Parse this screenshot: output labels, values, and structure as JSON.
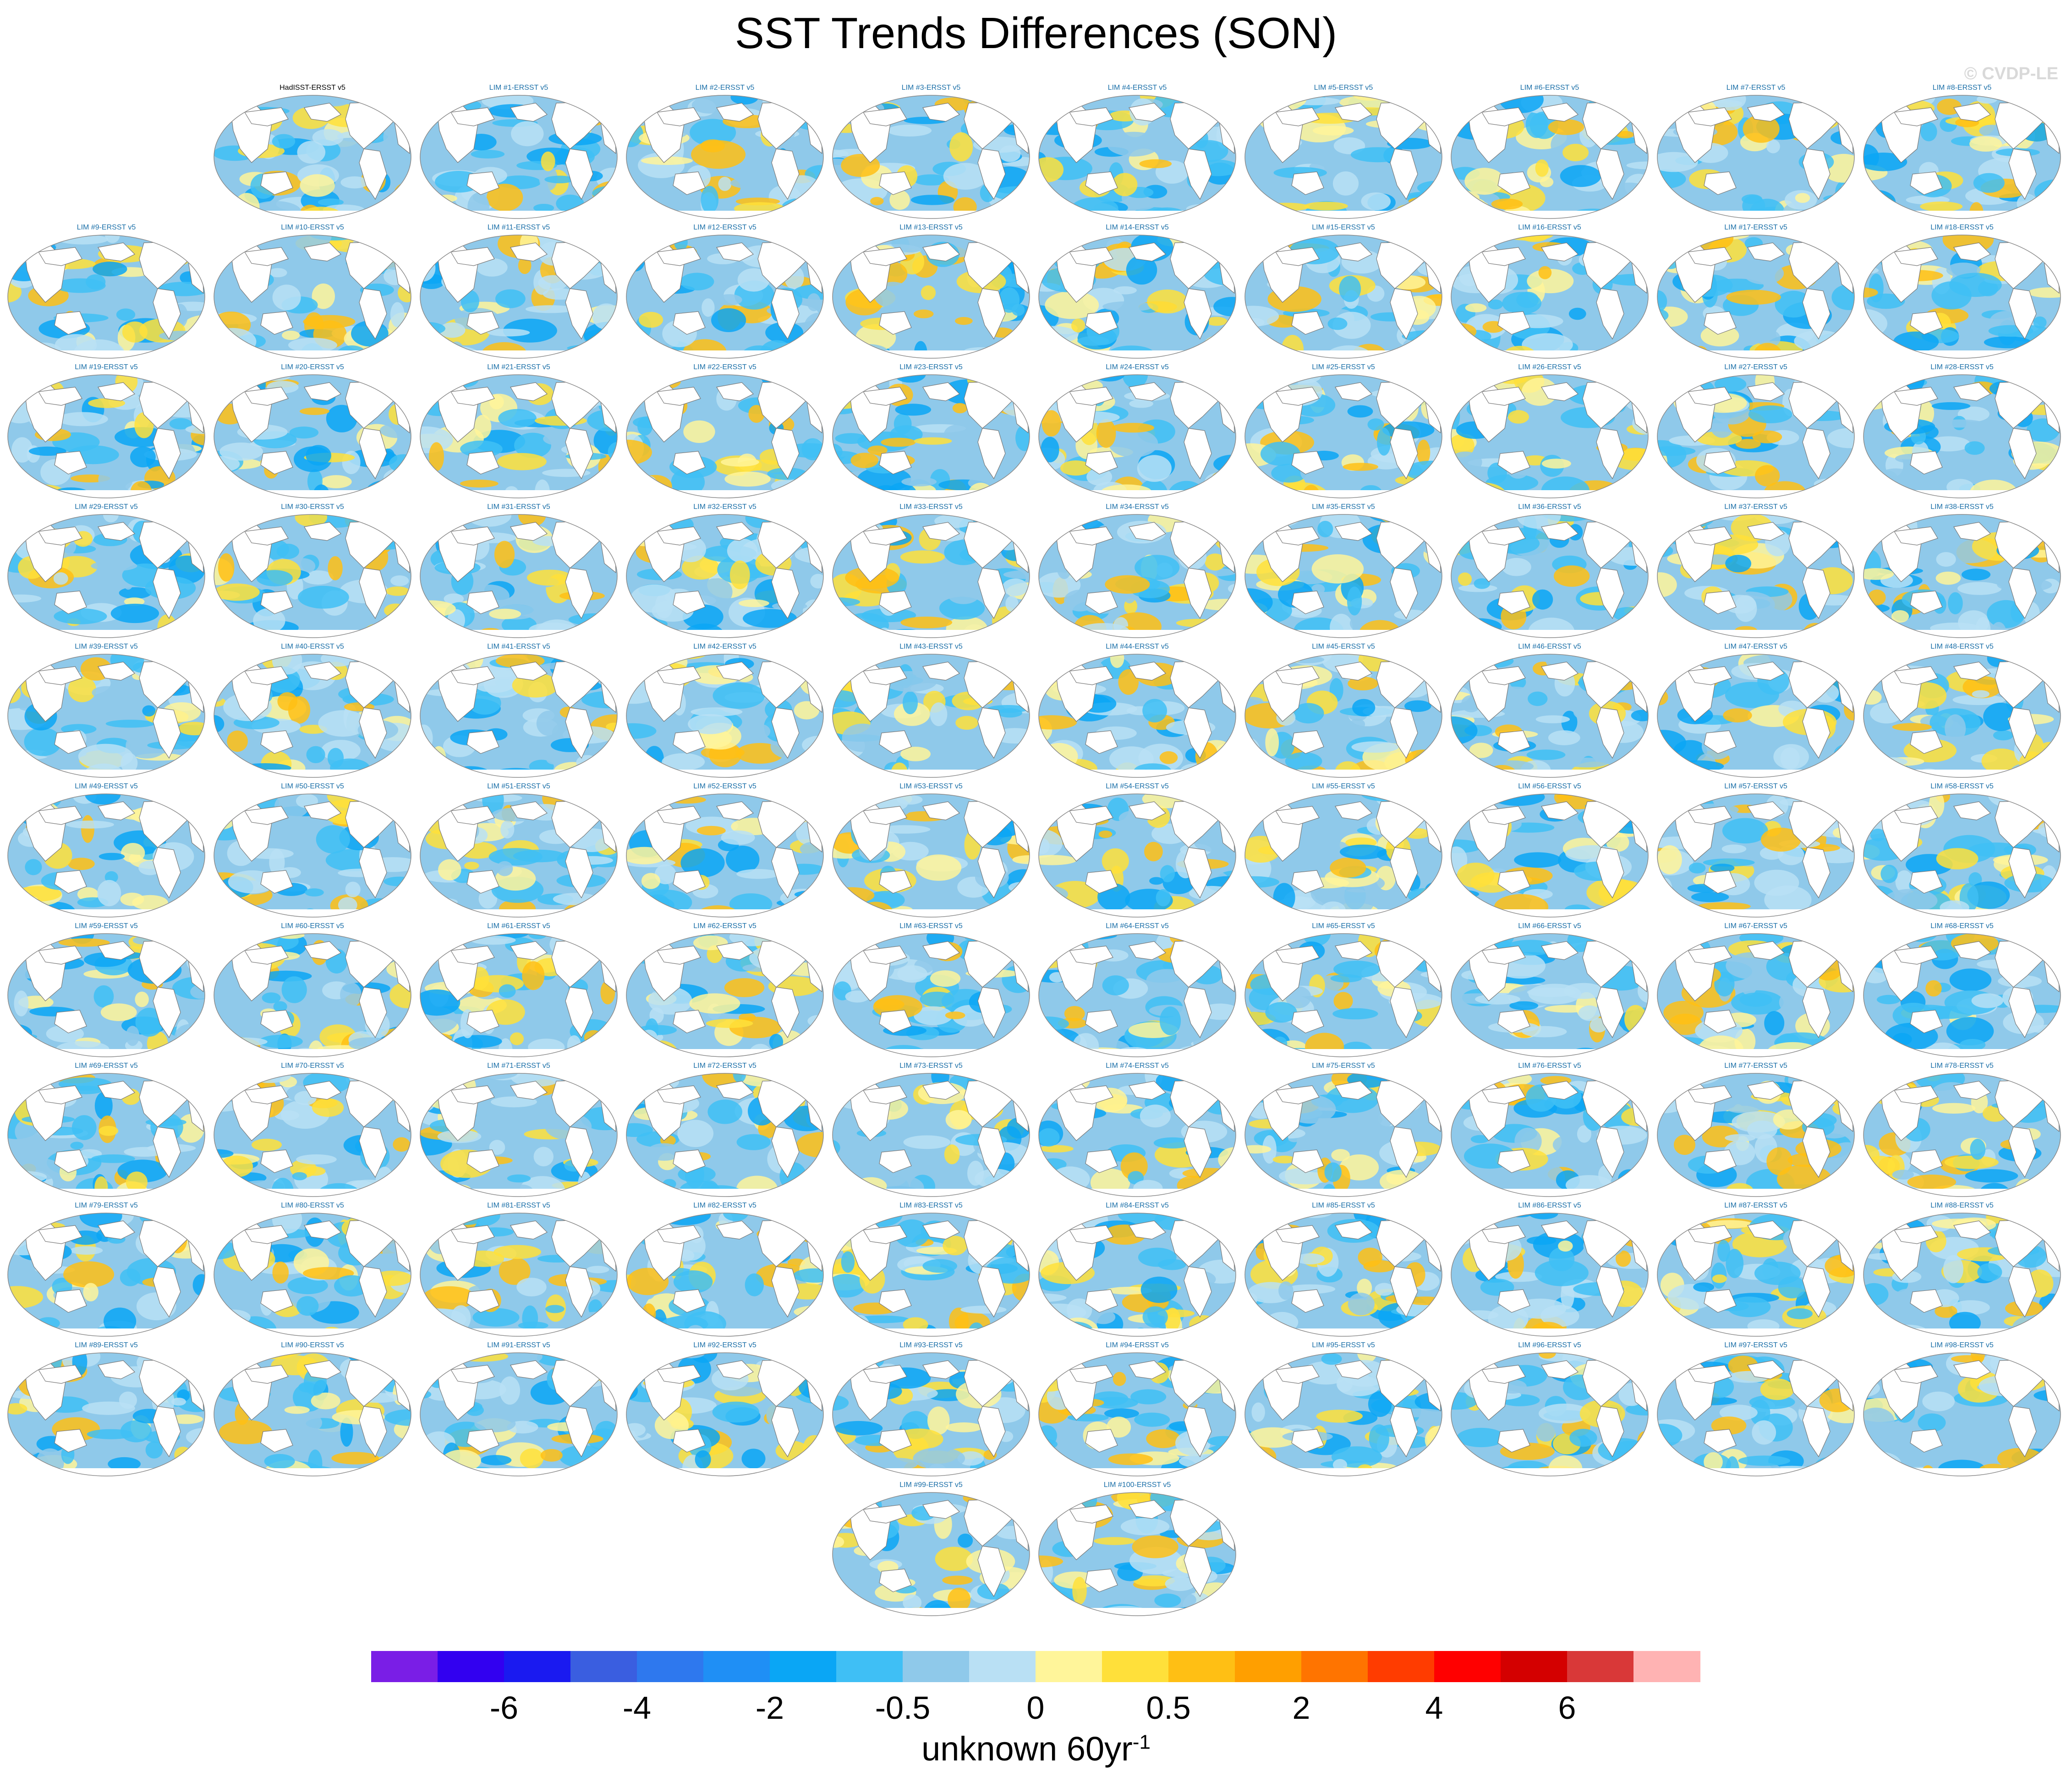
{
  "chart_data": {
    "type": "heatmap",
    "title": "SST Trends Differences (SON)",
    "watermark": "© CVDP-LE",
    "projection": "global map",
    "panel_titles": [
      "HadISST-ERSST v5",
      "LIM #1-ERSST v5",
      "LIM #2-ERSST v5",
      "LIM #3-ERSST v5",
      "LIM #4-ERSST v5",
      "LIM #5-ERSST v5",
      "LIM #6-ERSST v5",
      "LIM #7-ERSST v5",
      "LIM #8-ERSST v5",
      "LIM #9-ERSST v5",
      "LIM #10-ERSST v5",
      "LIM #11-ERSST v5",
      "LIM #12-ERSST v5",
      "LIM #13-ERSST v5",
      "LIM #14-ERSST v5",
      "LIM #15-ERSST v5",
      "LIM #16-ERSST v5",
      "LIM #17-ERSST v5",
      "LIM #18-ERSST v5",
      "LIM #19-ERSST v5",
      "LIM #20-ERSST v5",
      "LIM #21-ERSST v5",
      "LIM #22-ERSST v5",
      "LIM #23-ERSST v5",
      "LIM #24-ERSST v5",
      "LIM #25-ERSST v5",
      "LIM #26-ERSST v5",
      "LIM #27-ERSST v5",
      "LIM #28-ERSST v5",
      "LIM #29-ERSST v5",
      "LIM #30-ERSST v5",
      "LIM #31-ERSST v5",
      "LIM #32-ERSST v5",
      "LIM #33-ERSST v5",
      "LIM #34-ERSST v5",
      "LIM #35-ERSST v5",
      "LIM #36-ERSST v5",
      "LIM #37-ERSST v5",
      "LIM #38-ERSST v5",
      "LIM #39-ERSST v5",
      "LIM #40-ERSST v5",
      "LIM #41-ERSST v5",
      "LIM #42-ERSST v5",
      "LIM #43-ERSST v5",
      "LIM #44-ERSST v5",
      "LIM #45-ERSST v5",
      "LIM #46-ERSST v5",
      "LIM #47-ERSST v5",
      "LIM #48-ERSST v5",
      "LIM #49-ERSST v5",
      "LIM #50-ERSST v5",
      "LIM #51-ERSST v5",
      "LIM #52-ERSST v5",
      "LIM #53-ERSST v5",
      "LIM #54-ERSST v5",
      "LIM #55-ERSST v5",
      "LIM #56-ERSST v5",
      "LIM #57-ERSST v5",
      "LIM #58-ERSST v5",
      "LIM #59-ERSST v5",
      "LIM #60-ERSST v5",
      "LIM #61-ERSST v5",
      "LIM #62-ERSST v5",
      "LIM #63-ERSST v5",
      "LIM #64-ERSST v5",
      "LIM #65-ERSST v5",
      "LIM #66-ERSST v5",
      "LIM #67-ERSST v5",
      "LIM #68-ERSST v5",
      "LIM #69-ERSST v5",
      "LIM #70-ERSST v5",
      "LIM #71-ERSST v5",
      "LIM #72-ERSST v5",
      "LIM #73-ERSST v5",
      "LIM #74-ERSST v5",
      "LIM #75-ERSST v5",
      "LIM #76-ERSST v5",
      "LIM #77-ERSST v5",
      "LIM #78-ERSST v5",
      "LIM #79-ERSST v5",
      "LIM #80-ERSST v5",
      "LIM #81-ERSST v5",
      "LIM #82-ERSST v5",
      "LIM #83-ERSST v5",
      "LIM #84-ERSST v5",
      "LIM #85-ERSST v5",
      "LIM #86-ERSST v5",
      "LIM #87-ERSST v5",
      "LIM #88-ERSST v5",
      "LIM #89-ERSST v5",
      "LIM #90-ERSST v5",
      "LIM #91-ERSST v5",
      "LIM #92-ERSST v5",
      "LIM #93-ERSST v5",
      "LIM #94-ERSST v5",
      "LIM #95-ERSST v5",
      "LIM #96-ERSST v5",
      "LIM #97-ERSST v5",
      "LIM #98-ERSST v5",
      "LIM #99-ERSST v5",
      "LIM #100-ERSST v5"
    ],
    "colorbar": {
      "colors": [
        "#7a1ee6",
        "#3200f0",
        "#1a1af0",
        "#3a5ee0",
        "#2e78ee",
        "#1f8ff5",
        "#0aa6f5",
        "#3fbff5",
        "#8fc9ea",
        "#b9e0f4",
        "#fff59a",
        "#ffe03a",
        "#ffbf14",
        "#ff9f00",
        "#ff7400",
        "#ff3c00",
        "#ff0000",
        "#d40000",
        "#d93838",
        "#ffb3b3"
      ],
      "tick_labels": [
        "-6",
        "-4",
        "-2",
        "-0.5",
        "0",
        "0.5",
        "2",
        "4",
        "6"
      ],
      "tick_boundaries": [
        2,
        4,
        6,
        8,
        10,
        12,
        14,
        16,
        18
      ],
      "label": "unknown 60yr",
      "label_superscript": "-1"
    }
  }
}
